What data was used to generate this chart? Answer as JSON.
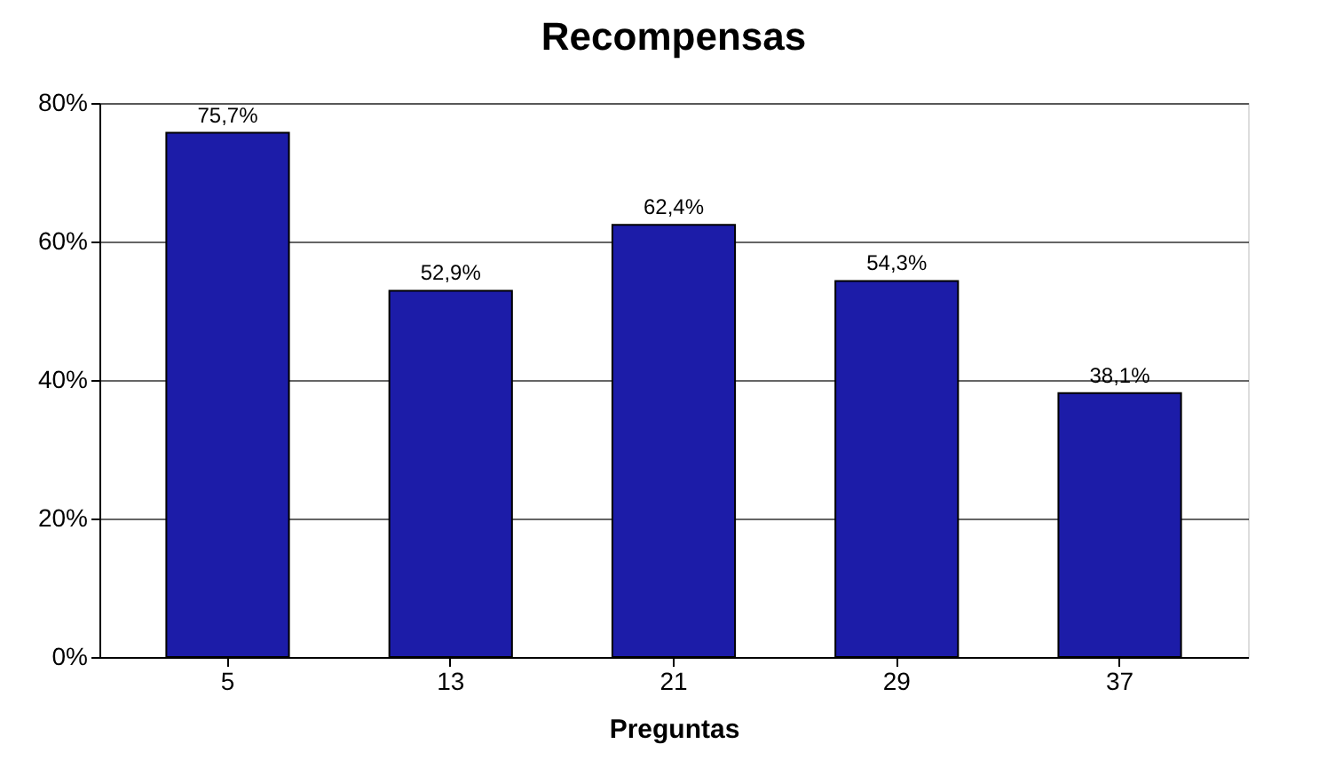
{
  "chart_data": {
    "type": "bar",
    "title": "Recompensas",
    "xlabel": "Preguntas",
    "categories": [
      "5",
      "13",
      "21",
      "29",
      "37"
    ],
    "values": [
      75.7,
      52.9,
      62.4,
      54.3,
      38.1
    ],
    "value_labels": [
      "75,7%",
      "52,9%",
      "62,4%",
      "54,3%",
      "38,1%"
    ],
    "color": "#1c1ca8",
    "ylim": [
      0,
      80
    ],
    "yticks": [
      {
        "value": 0,
        "label": "0%"
      },
      {
        "value": 20,
        "label": "20%"
      },
      {
        "value": 40,
        "label": "40%"
      },
      {
        "value": 60,
        "label": "60%"
      },
      {
        "value": 80,
        "label": "80%"
      }
    ],
    "grid": "y"
  }
}
